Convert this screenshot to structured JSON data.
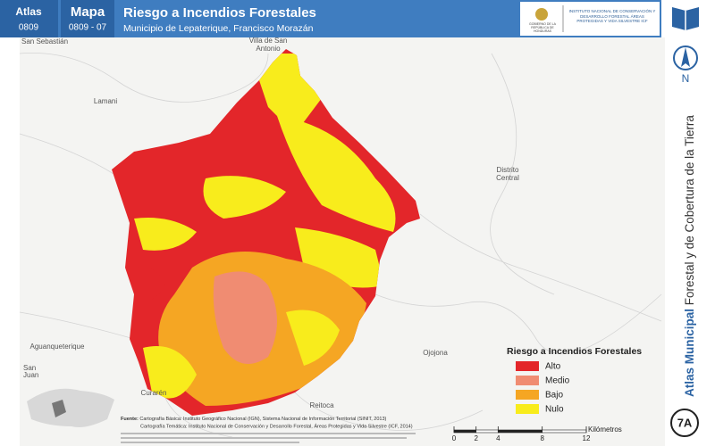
{
  "header": {
    "atlas_label": "Atlas",
    "atlas_code": "0809",
    "map_label": "Mapa",
    "map_code": "0809 - 07",
    "title": "Riesgo a Incendios Forestales",
    "subtitle": "Municipio de Lepaterique, Francisco Morazán",
    "logo_left": "GOBIERNO DE LA REPÚBLICA DE HONDURAS",
    "logo_right": "INSTITUTO NACIONAL DE CONSERVACIÓN Y DESARROLLO FORESTAL ÁREAS PROTEGIDAS Y VIDA SILVESTRE ICF"
  },
  "places": [
    "San Sebastián",
    "Villa de San",
    "Antonio",
    "Lamani",
    "Distrito",
    "Central",
    "Aguanqueterique",
    "San",
    "Juan",
    "Curarén",
    "Reitoca",
    "Ojojona"
  ],
  "legend": {
    "title": "Riesgo a Incendios Forestales",
    "items": [
      {
        "label": "Alto",
        "color": "#e3262a"
      },
      {
        "label": "Medio",
        "color": "#f08c72"
      },
      {
        "label": "Bajo",
        "color": "#f5a623"
      },
      {
        "label": "Nulo",
        "color": "#f8ec1c"
      }
    ]
  },
  "source": {
    "label": "Fuente:",
    "line1": "Cartografía Básica: Instituto Geográfico Nacional (IGN), Sistema Nacional de Información Territorial (SINIT, 2013)",
    "line2": "Cartografía Temática: Instituto Nacional de Conservación y Desarrollo Forestal, Áreas Protegidas y Vida Silvestre (ICF, 2014)"
  },
  "scale": {
    "ticks": [
      0,
      2,
      4,
      8,
      12
    ],
    "unit": "Kilómetros"
  },
  "sidebar": {
    "north": "N",
    "atlas_bold": "Atlas Municipal",
    "atlas_rest": " Forestal y de Cobertura de la Tierra",
    "badge": "7A"
  }
}
